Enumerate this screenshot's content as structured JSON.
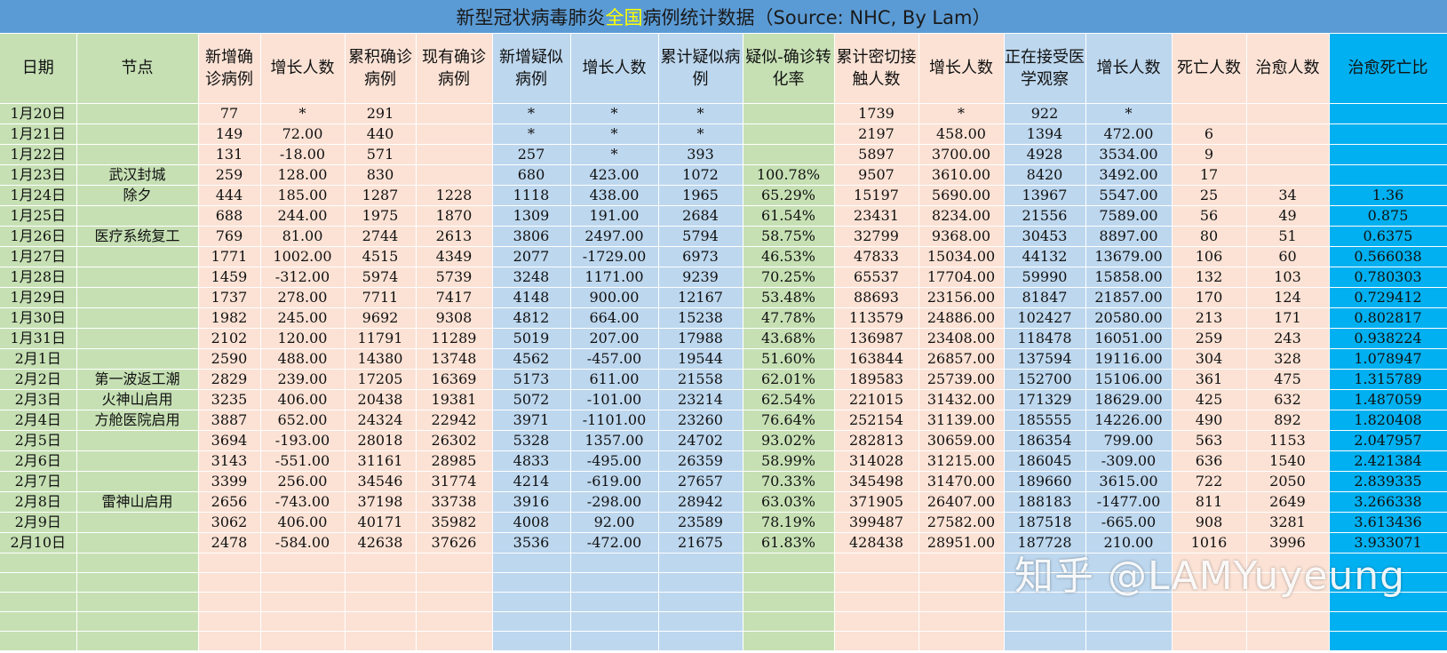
{
  "title": {
    "part1": "新型冠状病毒肺炎",
    "highlight": "全国",
    "part2": "病例统计数据（Source: NHC,  By Lam）"
  },
  "colors": {
    "title_bg": "#5b9bd5",
    "highlight": "#ffff00",
    "green": "#c6e0b4",
    "peach": "#fbe2d5",
    "blue": "#bdd7ee",
    "cyan": "#00b0f0"
  },
  "headers": [
    "日期",
    "节点",
    "新增确诊病例",
    "增长人数",
    "累积确诊病例",
    "现有确诊病例",
    "新增疑似病例",
    "增长人数",
    "累计疑似病例",
    "疑似-确诊转化率",
    "累计密切接触人数",
    "增长人数",
    "正在接受医学观察",
    "增长人数",
    "死亡人数",
    "治愈人数",
    "治愈死亡比"
  ],
  "rows": [
    [
      "1月20日",
      "",
      "77",
      "*",
      "291",
      "",
      "*",
      "*",
      "*",
      "",
      "1739",
      "*",
      "922",
      "*",
      "",
      "",
      ""
    ],
    [
      "1月21日",
      "",
      "149",
      "72.00",
      "440",
      "",
      "*",
      "*",
      "*",
      "",
      "2197",
      "458.00",
      "1394",
      "472.00",
      "6",
      "",
      ""
    ],
    [
      "1月22日",
      "",
      "131",
      "-18.00",
      "571",
      "",
      "257",
      "*",
      "393",
      "",
      "5897",
      "3700.00",
      "4928",
      "3534.00",
      "9",
      "",
      ""
    ],
    [
      "1月23日",
      "武汉封城",
      "259",
      "128.00",
      "830",
      "",
      "680",
      "423.00",
      "1072",
      "100.78%",
      "9507",
      "3610.00",
      "8420",
      "3492.00",
      "17",
      "",
      ""
    ],
    [
      "1月24日",
      "除夕",
      "444",
      "185.00",
      "1287",
      "1228",
      "1118",
      "438.00",
      "1965",
      "65.29%",
      "15197",
      "5690.00",
      "13967",
      "5547.00",
      "25",
      "34",
      "1.36"
    ],
    [
      "1月25日",
      "",
      "688",
      "244.00",
      "1975",
      "1870",
      "1309",
      "191.00",
      "2684",
      "61.54%",
      "23431",
      "8234.00",
      "21556",
      "7589.00",
      "56",
      "49",
      "0.875"
    ],
    [
      "1月26日",
      "医疗系统复工",
      "769",
      "81.00",
      "2744",
      "2613",
      "3806",
      "2497.00",
      "5794",
      "58.75%",
      "32799",
      "9368.00",
      "30453",
      "8897.00",
      "80",
      "51",
      "0.6375"
    ],
    [
      "1月27日",
      "",
      "1771",
      "1002.00",
      "4515",
      "4349",
      "2077",
      "-1729.00",
      "6973",
      "46.53%",
      "47833",
      "15034.00",
      "44132",
      "13679.00",
      "106",
      "60",
      "0.566038"
    ],
    [
      "1月28日",
      "",
      "1459",
      "-312.00",
      "5974",
      "5739",
      "3248",
      "1171.00",
      "9239",
      "70.25%",
      "65537",
      "17704.00",
      "59990",
      "15858.00",
      "132",
      "103",
      "0.780303"
    ],
    [
      "1月29日",
      "",
      "1737",
      "278.00",
      "7711",
      "7417",
      "4148",
      "900.00",
      "12167",
      "53.48%",
      "88693",
      "23156.00",
      "81847",
      "21857.00",
      "170",
      "124",
      "0.729412"
    ],
    [
      "1月30日",
      "",
      "1982",
      "245.00",
      "9692",
      "9308",
      "4812",
      "664.00",
      "15238",
      "47.78%",
      "113579",
      "24886.00",
      "102427",
      "20580.00",
      "213",
      "171",
      "0.802817"
    ],
    [
      "1月31日",
      "",
      "2102",
      "120.00",
      "11791",
      "11289",
      "5019",
      "207.00",
      "17988",
      "43.68%",
      "136987",
      "23408.00",
      "118478",
      "16051.00",
      "259",
      "243",
      "0.938224"
    ],
    [
      "2月1日",
      "",
      "2590",
      "488.00",
      "14380",
      "13748",
      "4562",
      "-457.00",
      "19544",
      "51.60%",
      "163844",
      "26857.00",
      "137594",
      "19116.00",
      "304",
      "328",
      "1.078947"
    ],
    [
      "2月2日",
      "第一波返工潮",
      "2829",
      "239.00",
      "17205",
      "16369",
      "5173",
      "611.00",
      "21558",
      "62.01%",
      "189583",
      "25739.00",
      "152700",
      "15106.00",
      "361",
      "475",
      "1.315789"
    ],
    [
      "2月3日",
      "火神山启用",
      "3235",
      "406.00",
      "20438",
      "19381",
      "5072",
      "-101.00",
      "23214",
      "62.54%",
      "221015",
      "31432.00",
      "171329",
      "18629.00",
      "425",
      "632",
      "1.487059"
    ],
    [
      "2月4日",
      "方舱医院启用",
      "3887",
      "652.00",
      "24324",
      "22942",
      "3971",
      "-1101.00",
      "23260",
      "76.64%",
      "252154",
      "31139.00",
      "185555",
      "14226.00",
      "490",
      "892",
      "1.820408"
    ],
    [
      "2月5日",
      "",
      "3694",
      "-193.00",
      "28018",
      "26302",
      "5328",
      "1357.00",
      "24702",
      "93.02%",
      "282813",
      "30659.00",
      "186354",
      "799.00",
      "563",
      "1153",
      "2.047957"
    ],
    [
      "2月6日",
      "",
      "3143",
      "-551.00",
      "31161",
      "28985",
      "4833",
      "-495.00",
      "26359",
      "58.99%",
      "314028",
      "31215.00",
      "186045",
      "-309.00",
      "636",
      "1540",
      "2.421384"
    ],
    [
      "2月7日",
      "",
      "3399",
      "256.00",
      "34546",
      "31774",
      "4214",
      "-619.00",
      "27657",
      "70.33%",
      "345498",
      "31470.00",
      "189660",
      "3615.00",
      "722",
      "2050",
      "2.839335"
    ],
    [
      "2月8日",
      "雷神山启用",
      "2656",
      "-743.00",
      "37198",
      "33738",
      "3916",
      "-298.00",
      "28942",
      "63.03%",
      "371905",
      "26407.00",
      "188183",
      "-1477.00",
      "811",
      "2649",
      "3.266338"
    ],
    [
      "2月9日",
      "",
      "3062",
      "406.00",
      "40171",
      "35982",
      "4008",
      "92.00",
      "23589",
      "78.19%",
      "399487",
      "27582.00",
      "187518",
      "-665.00",
      "908",
      "3281",
      "3.613436"
    ],
    [
      "2月10日",
      "",
      "2478",
      "-584.00",
      "42638",
      "37626",
      "3536",
      "-472.00",
      "21675",
      "61.83%",
      "428438",
      "28951.00",
      "187728",
      "210.00",
      "1016",
      "3996",
      "3.933071"
    ]
  ],
  "empty_rows": 5,
  "watermark": "知乎 @LAMYuyeung"
}
